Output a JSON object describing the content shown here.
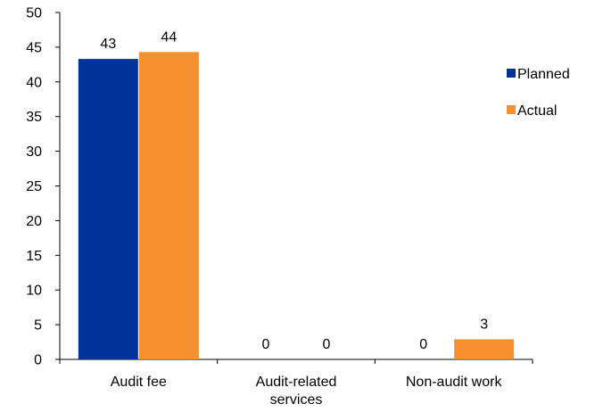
{
  "chart_data": {
    "type": "bar",
    "categories": [
      [
        "Audit fee"
      ],
      [
        "Audit-related",
        "services"
      ],
      [
        "Non-audit work"
      ]
    ],
    "series": [
      {
        "name": "Planned",
        "values": [
          43.3,
          0,
          0
        ],
        "labels": [
          "43",
          "0",
          "0"
        ],
        "color": "#003399"
      },
      {
        "name": "Actual",
        "values": [
          44.3,
          0,
          2.9
        ],
        "labels": [
          "44",
          "0",
          "3"
        ],
        "color": "#F7902F"
      }
    ],
    "ylim": [
      0,
      50
    ],
    "yticks": [
      "0",
      "5",
      "10",
      "15",
      "20",
      "25",
      "30",
      "35",
      "40",
      "45",
      "50"
    ],
    "grid": false,
    "legend_position": "right"
  }
}
